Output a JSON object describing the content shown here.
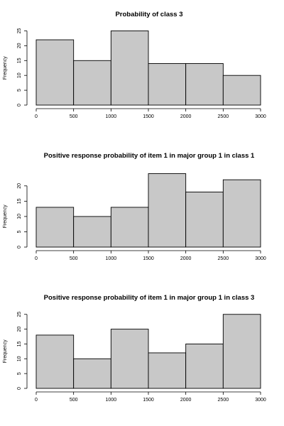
{
  "chart_data": [
    {
      "type": "bar",
      "title": "Probability of class 3",
      "xlabel": "",
      "ylabel": "Frequency",
      "bins": [
        [
          0,
          500
        ],
        [
          500,
          1000
        ],
        [
          1000,
          1500
        ],
        [
          1500,
          2000
        ],
        [
          2000,
          2500
        ],
        [
          2500,
          3000
        ]
      ],
      "values": [
        22,
        15,
        25,
        14,
        14,
        10
      ],
      "xticks": [
        0,
        500,
        1000,
        1500,
        2000,
        2500,
        3000
      ],
      "yticks": [
        0,
        5,
        10,
        15,
        20,
        25
      ],
      "xlim": [
        0,
        3000
      ],
      "ylim": [
        0,
        25
      ],
      "bar_color": "#c8c8c8",
      "grid": false
    },
    {
      "type": "bar",
      "title": "Positive response probability of item 1 in major group 1 in class 1",
      "xlabel": "",
      "ylabel": "Frequency",
      "bins": [
        [
          0,
          500
        ],
        [
          500,
          1000
        ],
        [
          1000,
          1500
        ],
        [
          1500,
          2000
        ],
        [
          2000,
          2500
        ],
        [
          2500,
          3000
        ]
      ],
      "values": [
        13,
        10,
        13,
        24,
        18,
        22
      ],
      "xticks": [
        0,
        500,
        1000,
        1500,
        2000,
        2500,
        3000
      ],
      "yticks": [
        0,
        5,
        10,
        15,
        20
      ],
      "xlim": [
        0,
        3000
      ],
      "ylim": [
        0,
        20
      ],
      "bar_color": "#c8c8c8",
      "grid": false
    },
    {
      "type": "bar",
      "title": "Positive response probability of item 1 in major group 1 in class 3",
      "xlabel": "",
      "ylabel": "Frequency",
      "bins": [
        [
          0,
          500
        ],
        [
          500,
          1000
        ],
        [
          1000,
          1500
        ],
        [
          1500,
          2000
        ],
        [
          2000,
          2500
        ],
        [
          2500,
          3000
        ]
      ],
      "values": [
        18,
        10,
        20,
        12,
        15,
        25
      ],
      "xticks": [
        0,
        500,
        1000,
        1500,
        2000,
        2500,
        3000
      ],
      "yticks": [
        0,
        5,
        10,
        15,
        20,
        25
      ],
      "xlim": [
        0,
        3000
      ],
      "ylim": [
        0,
        25
      ],
      "bar_color": "#c8c8c8",
      "grid": false
    }
  ]
}
